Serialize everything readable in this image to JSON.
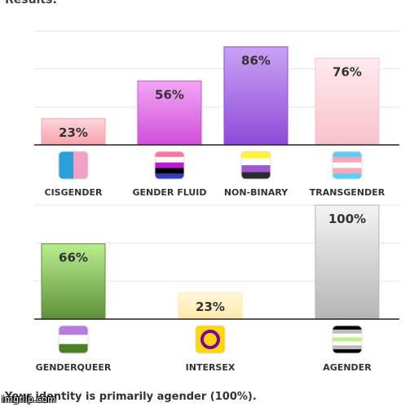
{
  "page": {
    "heading": "Results:",
    "footer": "Your identity is primarily agender (100%).",
    "watermark": "imgflip.com"
  },
  "chart_data": [
    {
      "type": "bar",
      "categories": [
        "CISGENDER",
        "GENDER FLUID",
        "NON-BINARY",
        "TRANSGENDER"
      ],
      "values": [
        23,
        56,
        86,
        76
      ],
      "data_labels": [
        "23%",
        "56%",
        "86%",
        "76%"
      ],
      "ylim": [
        0,
        100
      ],
      "grid": true,
      "colors": [
        [
          "#ffd5da",
          "#f7a3ab"
        ],
        [
          "#f3a6f5",
          "#cf4fda"
        ],
        [
          "#c8a2f5",
          "#8f4bd8"
        ],
        [
          "#ffeaf0",
          "#f8c2cb"
        ]
      ],
      "flags": [
        "cisgender-flag-icon",
        "genderfluid-flag-icon",
        "nonbinary-flag-icon",
        "transgender-flag-icon"
      ]
    },
    {
      "type": "bar",
      "categories": [
        "GENDERQUEER",
        "INTERSEX",
        "AGENDER"
      ],
      "values": [
        66,
        23,
        100
      ],
      "data_labels": [
        "66%",
        "23%",
        "100%"
      ],
      "ylim": [
        0,
        100
      ],
      "grid": true,
      "colors": [
        [
          "#b9ee8e",
          "#5f8f3a"
        ],
        [
          "#fff8dc",
          "#ffe7a8"
        ],
        [
          "#f3f3f3",
          "#b5b5b5"
        ]
      ],
      "flags": [
        "genderqueer-flag-icon",
        "intersex-flag-icon",
        "agender-flag-icon"
      ]
    }
  ]
}
